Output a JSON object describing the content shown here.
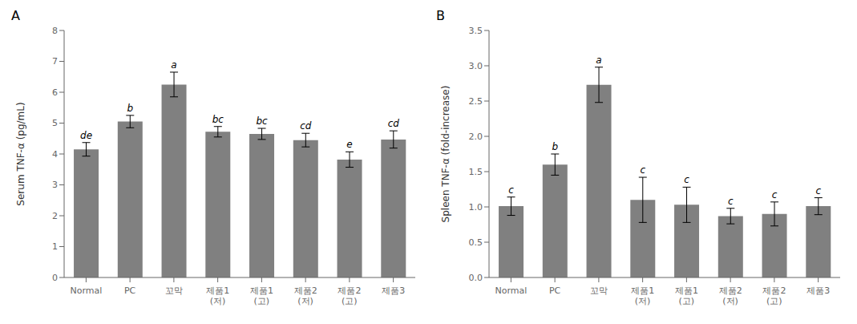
{
  "chart_data": [
    {
      "type": "bar",
      "title": "A",
      "categories": [
        "Normal",
        "PC",
        "꼬막",
        "제품1\n(저)",
        "제품1\n(고)",
        "제품2\n(저)",
        "제품2\n(고)",
        "제품3"
      ],
      "values": [
        4.15,
        5.05,
        6.25,
        4.72,
        4.65,
        4.45,
        3.82,
        4.47
      ],
      "errors": [
        0.22,
        0.2,
        0.4,
        0.17,
        0.18,
        0.22,
        0.25,
        0.28
      ],
      "letters": [
        "de",
        "b",
        "a",
        "bc",
        "bc",
        "cd",
        "e",
        "cd"
      ],
      "y_label": "Serum TNF-α (pg/mL)",
      "ylim": [
        0,
        8
      ],
      "yticks": [
        0,
        1,
        2,
        3,
        4,
        5,
        6,
        7,
        8
      ],
      "color": "#808080",
      "grid": false
    },
    {
      "type": "bar",
      "title": "B",
      "categories": [
        "Normal",
        "PC",
        "꼬막",
        "제품1\n(저)",
        "제품1\n(고)",
        "제품2\n(저)",
        "제품2\n(고)",
        "제품3"
      ],
      "values": [
        1.01,
        1.6,
        2.73,
        1.1,
        1.03,
        0.87,
        0.9,
        1.01
      ],
      "errors": [
        0.13,
        0.15,
        0.25,
        0.32,
        0.25,
        0.11,
        0.17,
        0.12
      ],
      "letters": [
        "c",
        "b",
        "a",
        "c",
        "c",
        "c",
        "c",
        "c"
      ],
      "y_label": "Spleen TNF-α (fold-increase)",
      "ylim": [
        0,
        3.5
      ],
      "yticks": [
        {
          "value": 0,
          "label": "0.0"
        },
        0.5,
        {
          "value": 1.0,
          "label": "1.0"
        },
        1.5,
        {
          "value": 2.0,
          "label": "2.0"
        },
        2.5,
        {
          "value": 3.0,
          "label": "3.0"
        },
        3.5
      ],
      "color": "#808080",
      "grid": false
    }
  ]
}
